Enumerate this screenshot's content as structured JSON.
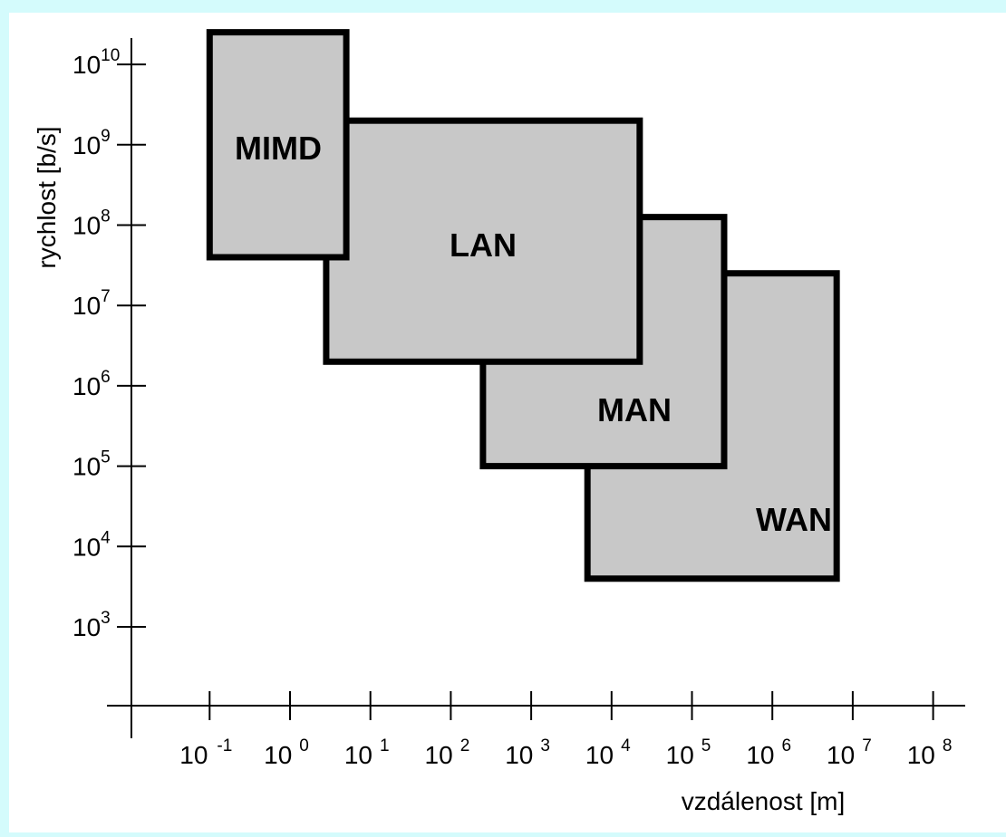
{
  "chart_data": {
    "type": "box",
    "title": "",
    "xlabel": "vzdálenost  [m]",
    "ylabel": "rychlost  [b/s]",
    "x_scale": "log",
    "y_scale": "log",
    "xlim_exp": [
      -2,
      8.4
    ],
    "ylim_exp": [
      1,
      10.7
    ],
    "x_ticks": [
      {
        "exp": -1,
        "base": "10",
        "sup": "-1"
      },
      {
        "exp": 0,
        "base": "10",
        "sup": "0"
      },
      {
        "exp": 1,
        "base": "10",
        "sup": "1"
      },
      {
        "exp": 2,
        "base": "10",
        "sup": "2"
      },
      {
        "exp": 3,
        "base": "10",
        "sup": "3"
      },
      {
        "exp": 4,
        "base": "10",
        "sup": "4"
      },
      {
        "exp": 5,
        "base": "10",
        "sup": "5"
      },
      {
        "exp": 6,
        "base": "10",
        "sup": "6"
      },
      {
        "exp": 7,
        "base": "10",
        "sup": "7"
      },
      {
        "exp": 8,
        "base": "10",
        "sup": "8"
      }
    ],
    "y_ticks": [
      {
        "exp": 3,
        "base": "10",
        "sup": "3"
      },
      {
        "exp": 4,
        "base": "10",
        "sup": "4"
      },
      {
        "exp": 5,
        "base": "10",
        "sup": "5"
      },
      {
        "exp": 6,
        "base": "10",
        "sup": "6"
      },
      {
        "exp": 7,
        "base": "10",
        "sup": "7"
      },
      {
        "exp": 8,
        "base": "10",
        "sup": "8"
      },
      {
        "exp": 9,
        "base": "10",
        "sup": "9"
      },
      {
        "exp": 10,
        "base": "10",
        "sup": "10"
      }
    ],
    "regions": [
      {
        "name": "WAN",
        "x_exp": [
          3.7,
          6.8
        ],
        "y_exp": [
          3.6,
          7.4
        ]
      },
      {
        "name": "MAN",
        "x_exp": [
          2.4,
          5.4
        ],
        "y_exp": [
          5.0,
          8.1
        ]
      },
      {
        "name": "LAN",
        "x_exp": [
          0.45,
          4.35
        ],
        "y_exp": [
          6.3,
          9.3
        ]
      },
      {
        "name": "MIMD",
        "x_exp": [
          -1.0,
          0.7
        ],
        "y_exp": [
          7.6,
          10.4
        ]
      }
    ],
    "colors": {
      "fill": "#c8c8c8",
      "stroke": "#000000",
      "page_background": "#d4fbfc",
      "panel_background": "#ffffff"
    }
  }
}
